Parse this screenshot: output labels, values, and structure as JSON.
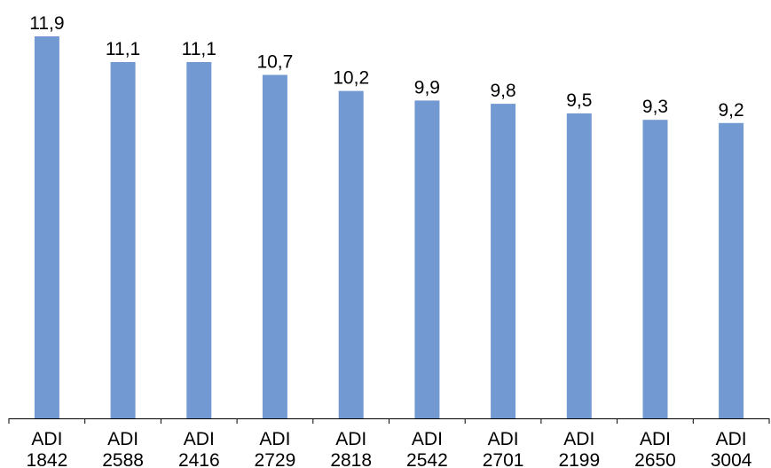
{
  "chart_data": {
    "type": "bar",
    "title": "",
    "xlabel": "",
    "ylabel": "",
    "categories": [
      [
        "ADI",
        "1842"
      ],
      [
        "ADI",
        "2588"
      ],
      [
        "ADI",
        "2416"
      ],
      [
        "ADI",
        "2729"
      ],
      [
        "ADI",
        "2818"
      ],
      [
        "ADI",
        "2542"
      ],
      [
        "ADI",
        "2701"
      ],
      [
        "ADI",
        "2199"
      ],
      [
        "ADI",
        "2650"
      ],
      [
        "ADI",
        "3004"
      ]
    ],
    "values": [
      11.9,
      11.1,
      11.1,
      10.7,
      10.2,
      9.9,
      9.8,
      9.5,
      9.3,
      9.2
    ],
    "value_labels": [
      "11,9",
      "11,1",
      "11,1",
      "10,7",
      "10,2",
      "9,9",
      "9,8",
      "9,5",
      "9,3",
      "9,2"
    ],
    "ylim": [
      0,
      11.9
    ],
    "grid": false,
    "legend": "none",
    "bar_color": "#7299d2"
  }
}
